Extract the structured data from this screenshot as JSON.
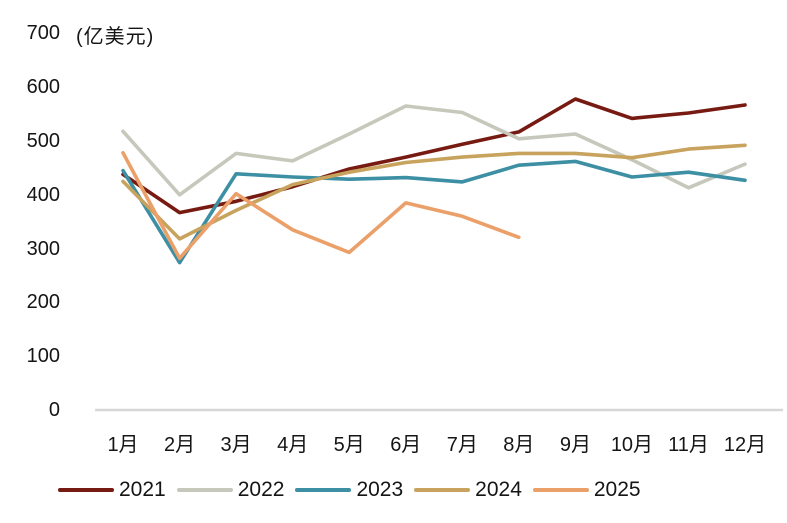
{
  "chart_data": {
    "type": "line",
    "title": "(亿美元)",
    "ylabel": "(亿美元)",
    "categories": [
      "1月",
      "2月",
      "3月",
      "4月",
      "5月",
      "6月",
      "7月",
      "8月",
      "9月",
      "10月",
      "11月",
      "12月"
    ],
    "yticks": [
      0,
      100,
      200,
      300,
      400,
      500,
      600,
      700
    ],
    "ylim": [
      0,
      700
    ],
    "grid": false,
    "legend_position": "bottom",
    "axis_line_color": "#d7d7d7",
    "series": [
      {
        "name": "2021",
        "color": "#771a12",
        "values": [
          438,
          367,
          388,
          415,
          448,
          470,
          494,
          517,
          578,
          542,
          552,
          567
        ]
      },
      {
        "name": "2022",
        "color": "#c6c8bb",
        "values": [
          518,
          400,
          477,
          463,
          513,
          565,
          553,
          504,
          513,
          465,
          413,
          457
        ]
      },
      {
        "name": "2023",
        "color": "#3d8fa4",
        "values": [
          445,
          274,
          439,
          433,
          429,
          432,
          424,
          455,
          462,
          433,
          442,
          427
        ]
      },
      {
        "name": "2024",
        "color": "#c7a35d",
        "values": [
          425,
          318,
          371,
          419,
          442,
          460,
          470,
          477,
          477,
          469,
          485,
          492
        ]
      },
      {
        "name": "2025",
        "color": "#eb9f69",
        "values": [
          478,
          282,
          402,
          335,
          293,
          385,
          360,
          321
        ]
      }
    ]
  }
}
